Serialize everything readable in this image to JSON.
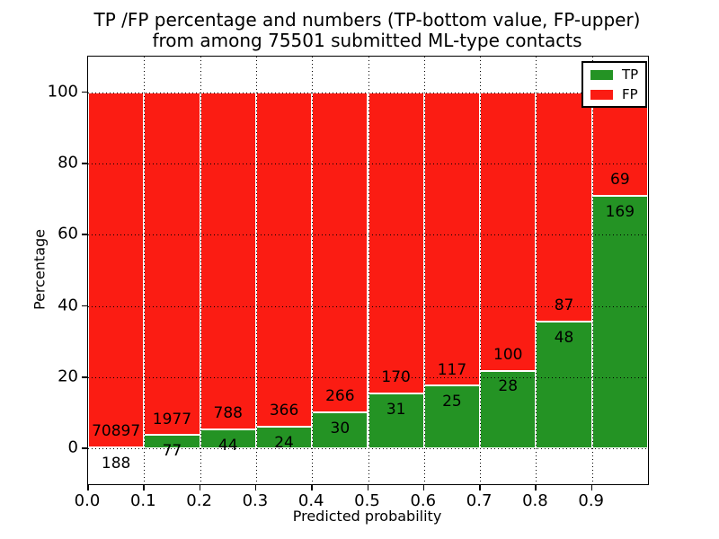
{
  "figure": {
    "title_line1": "TP /FP percentage and numbers (TP-bottom value, FP-upper)",
    "title_line2": "from among 75501 submitted ML-type contacts"
  },
  "axes": {
    "xlabel": "Predicted probability",
    "ylabel": "Percentage",
    "xtick_labels": [
      "0.0",
      "0.1",
      "0.2",
      "0.3",
      "0.4",
      "0.5",
      "0.6",
      "0.7",
      "0.8",
      "0.9"
    ],
    "ytick_labels": [
      "0",
      "20",
      "40",
      "60",
      "80",
      "100"
    ]
  },
  "legend": {
    "items": [
      {
        "label": "TP",
        "color": "#249324"
      },
      {
        "label": "FP",
        "color": "#fb1c13"
      }
    ]
  },
  "chart_data": {
    "type": "bar",
    "stacked": true,
    "normalized_to_percent": true,
    "title": "TP /FP percentage and numbers (TP-bottom value, FP-upper) from among 75501 submitted ML-type contacts",
    "xlabel": "Predicted probability",
    "ylabel": "Percentage",
    "total_submitted_contacts": 75501,
    "bin_left_edges": [
      0.0,
      0.1,
      0.2,
      0.3,
      0.4,
      0.5,
      0.6,
      0.7,
      0.8,
      0.9
    ],
    "bin_width": 0.1,
    "xlim": [
      0.0,
      1.0
    ],
    "ylim": [
      -10,
      110
    ],
    "xticks": [
      0.0,
      0.1,
      0.2,
      0.3,
      0.4,
      0.5,
      0.6,
      0.7,
      0.8,
      0.9
    ],
    "yticks": [
      0,
      20,
      40,
      60,
      80,
      100
    ],
    "grid": "dotted",
    "legend_position": "upper right",
    "series": [
      {
        "name": "TP",
        "color": "#249324",
        "counts": [
          188,
          77,
          44,
          24,
          30,
          31,
          25,
          28,
          48,
          169
        ]
      },
      {
        "name": "FP",
        "color": "#fb1c13",
        "counts": [
          70897,
          1977,
          788,
          366,
          266,
          170,
          117,
          100,
          87,
          69
        ]
      }
    ],
    "tp_percent_of_bin": [
      0.26,
      3.75,
      5.29,
      6.15,
      10.14,
      15.42,
      17.61,
      21.88,
      35.56,
      71.01
    ]
  }
}
